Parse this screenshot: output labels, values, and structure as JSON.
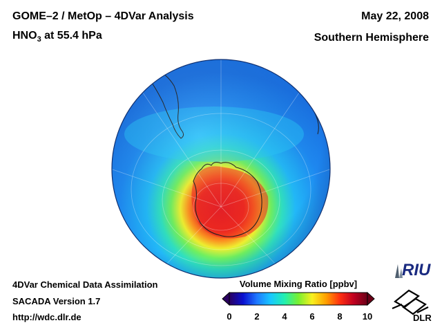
{
  "header": {
    "title": "GOME–2 / MetOp – 4DVar Analysis",
    "species_prefix": "HNO",
    "species_subscript": "3",
    "species_suffix": " at 55.4 hPa",
    "date": "May 22, 2008",
    "hemisphere": "Southern Hemisphere"
  },
  "footer": {
    "line1": "4DVar Chemical Data Assimilation",
    "line2": "SACADA Version 1.7",
    "line3": "http://wdc.dlr.de"
  },
  "colorbar": {
    "title": "Volume Mixing Ratio [ppbv]",
    "min": 0,
    "max": 10,
    "ticks": [
      "0",
      "2",
      "4",
      "6",
      "8",
      "10"
    ],
    "colors": [
      "#2a0060",
      "#0a10d0",
      "#1e78ff",
      "#18c8ff",
      "#22f0b0",
      "#78f030",
      "#f8f020",
      "#ffa000",
      "#ff3010",
      "#c00020",
      "#6a0018"
    ]
  },
  "logos": {
    "riu": "RIU",
    "dlr": "DLR"
  },
  "map": {
    "projection": "orthographic",
    "center": "South Pole",
    "field_description_colors": {
      "ocean_low": "#2a8cf0",
      "mid": "#30d0f0",
      "ring": "#50f0a0",
      "high": "#f0f030",
      "core": "#ff3030"
    }
  }
}
